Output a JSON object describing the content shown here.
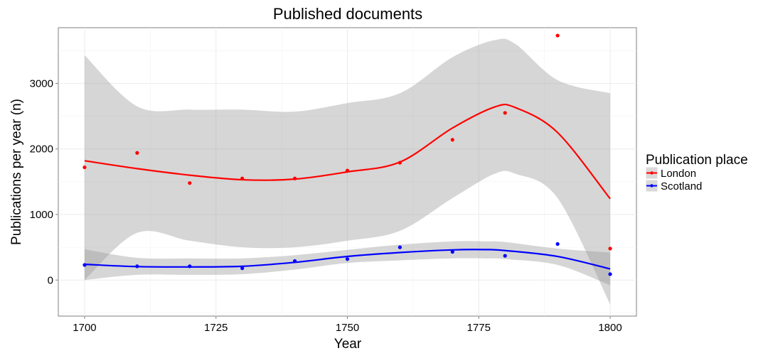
{
  "chart_data": {
    "type": "scatter",
    "title": "Published documents",
    "xlabel": "Year",
    "ylabel": "Publications per year (n)",
    "xlim": [
      1695,
      1805
    ],
    "ylim": [
      -550,
      3850
    ],
    "x_ticks": [
      1700,
      1725,
      1750,
      1775,
      1800
    ],
    "x_tick_labels": [
      "1700",
      "1725",
      "1750",
      "1775",
      "1800"
    ],
    "y_ticks": [
      0,
      1000,
      2000,
      3000
    ],
    "y_tick_labels": [
      "0",
      "1000",
      "2000",
      "3000"
    ],
    "grid": true,
    "legend": {
      "title": "Publication place",
      "position": "right"
    },
    "series": [
      {
        "name": "London",
        "color": "#ff0000",
        "points": [
          {
            "x": 1700,
            "y": 1720
          },
          {
            "x": 1710,
            "y": 1940
          },
          {
            "x": 1720,
            "y": 1480
          },
          {
            "x": 1730,
            "y": 1550
          },
          {
            "x": 1740,
            "y": 1550
          },
          {
            "x": 1750,
            "y": 1670
          },
          {
            "x": 1760,
            "y": 1790
          },
          {
            "x": 1770,
            "y": 2140
          },
          {
            "x": 1780,
            "y": 2550
          },
          {
            "x": 1790,
            "y": 3730
          },
          {
            "x": 1800,
            "y": 480
          }
        ],
        "smooth": [
          {
            "x": 1700,
            "y": 1820
          },
          {
            "x": 1710,
            "y": 1700
          },
          {
            "x": 1720,
            "y": 1600
          },
          {
            "x": 1730,
            "y": 1530
          },
          {
            "x": 1740,
            "y": 1540
          },
          {
            "x": 1750,
            "y": 1650
          },
          {
            "x": 1760,
            "y": 1800
          },
          {
            "x": 1770,
            "y": 2320
          },
          {
            "x": 1778,
            "y": 2640
          },
          {
            "x": 1782,
            "y": 2630
          },
          {
            "x": 1790,
            "y": 2250
          },
          {
            "x": 1800,
            "y": 1240
          }
        ],
        "band_upper": [
          {
            "x": 1700,
            "y": 3430
          },
          {
            "x": 1710,
            "y": 2650
          },
          {
            "x": 1720,
            "y": 2600
          },
          {
            "x": 1730,
            "y": 2600
          },
          {
            "x": 1740,
            "y": 2570
          },
          {
            "x": 1750,
            "y": 2700
          },
          {
            "x": 1760,
            "y": 2850
          },
          {
            "x": 1770,
            "y": 3400
          },
          {
            "x": 1778,
            "y": 3660
          },
          {
            "x": 1782,
            "y": 3600
          },
          {
            "x": 1790,
            "y": 3050
          },
          {
            "x": 1800,
            "y": 2850
          }
        ],
        "band_lower": [
          {
            "x": 1700,
            "y": 0
          },
          {
            "x": 1710,
            "y": 720
          },
          {
            "x": 1720,
            "y": 600
          },
          {
            "x": 1730,
            "y": 500
          },
          {
            "x": 1740,
            "y": 500
          },
          {
            "x": 1750,
            "y": 600
          },
          {
            "x": 1760,
            "y": 750
          },
          {
            "x": 1770,
            "y": 1250
          },
          {
            "x": 1778,
            "y": 1620
          },
          {
            "x": 1782,
            "y": 1620
          },
          {
            "x": 1790,
            "y": 1250
          },
          {
            "x": 1800,
            "y": -370
          }
        ]
      },
      {
        "name": "Scotland",
        "color": "#0000ff",
        "points": [
          {
            "x": 1700,
            "y": 230
          },
          {
            "x": 1710,
            "y": 210
          },
          {
            "x": 1720,
            "y": 210
          },
          {
            "x": 1730,
            "y": 180
          },
          {
            "x": 1740,
            "y": 290
          },
          {
            "x": 1750,
            "y": 320
          },
          {
            "x": 1760,
            "y": 500
          },
          {
            "x": 1770,
            "y": 430
          },
          {
            "x": 1780,
            "y": 370
          },
          {
            "x": 1790,
            "y": 550
          },
          {
            "x": 1800,
            "y": 90
          }
        ],
        "smooth": [
          {
            "x": 1700,
            "y": 240
          },
          {
            "x": 1710,
            "y": 205
          },
          {
            "x": 1720,
            "y": 200
          },
          {
            "x": 1730,
            "y": 210
          },
          {
            "x": 1740,
            "y": 270
          },
          {
            "x": 1750,
            "y": 360
          },
          {
            "x": 1760,
            "y": 420
          },
          {
            "x": 1770,
            "y": 460
          },
          {
            "x": 1776,
            "y": 465
          },
          {
            "x": 1780,
            "y": 450
          },
          {
            "x": 1790,
            "y": 360
          },
          {
            "x": 1800,
            "y": 170
          }
        ],
        "band_upper": [
          {
            "x": 1700,
            "y": 470
          },
          {
            "x": 1710,
            "y": 340
          },
          {
            "x": 1720,
            "y": 330
          },
          {
            "x": 1730,
            "y": 330
          },
          {
            "x": 1740,
            "y": 380
          },
          {
            "x": 1750,
            "y": 460
          },
          {
            "x": 1760,
            "y": 540
          },
          {
            "x": 1770,
            "y": 590
          },
          {
            "x": 1776,
            "y": 590
          },
          {
            "x": 1780,
            "y": 580
          },
          {
            "x": 1790,
            "y": 480
          },
          {
            "x": 1800,
            "y": 420
          }
        ],
        "band_lower": [
          {
            "x": 1700,
            "y": 0
          },
          {
            "x": 1710,
            "y": 80
          },
          {
            "x": 1720,
            "y": 80
          },
          {
            "x": 1730,
            "y": 90
          },
          {
            "x": 1740,
            "y": 160
          },
          {
            "x": 1750,
            "y": 260
          },
          {
            "x": 1760,
            "y": 300
          },
          {
            "x": 1770,
            "y": 330
          },
          {
            "x": 1776,
            "y": 330
          },
          {
            "x": 1780,
            "y": 320
          },
          {
            "x": 1790,
            "y": 230
          },
          {
            "x": 1800,
            "y": -80
          }
        ]
      }
    ]
  }
}
